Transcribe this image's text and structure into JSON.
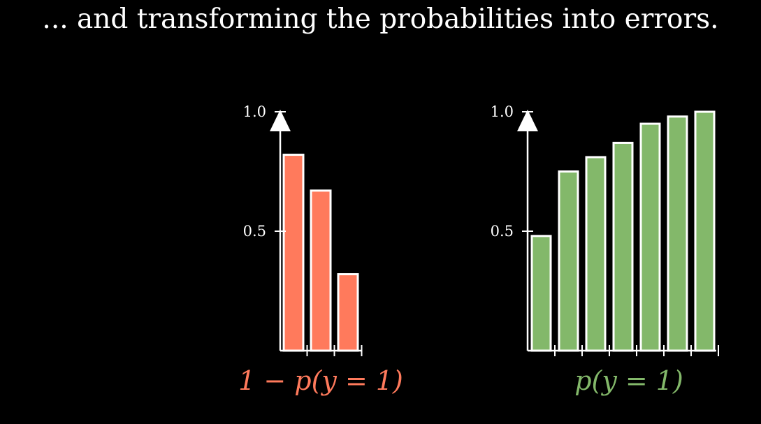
{
  "caption": "... and transforming the probabilities into errors.",
  "chart_data": [
    {
      "type": "bar",
      "xlabel": "1 − p(y = 1)",
      "ylim": [
        0,
        1.0
      ],
      "y_ticks": [
        "0.5",
        "1.0"
      ],
      "x_ticks": "unlabeled",
      "grid": false,
      "legend": "none",
      "color": "#FF7A5C",
      "categories": [
        "",
        "",
        ""
      ],
      "values": [
        0.82,
        0.67,
        0.32
      ]
    },
    {
      "type": "bar",
      "xlabel": "p(y = 1)",
      "ylim": [
        0,
        1.0
      ],
      "y_ticks": [
        "0.5",
        "1.0"
      ],
      "x_ticks": "unlabeled",
      "grid": false,
      "legend": "none",
      "color": "#83B86A",
      "categories": [
        "",
        "",
        "",
        "",
        "",
        "",
        ""
      ],
      "values": [
        0.48,
        0.75,
        0.81,
        0.87,
        0.95,
        0.98,
        1.0
      ]
    }
  ]
}
